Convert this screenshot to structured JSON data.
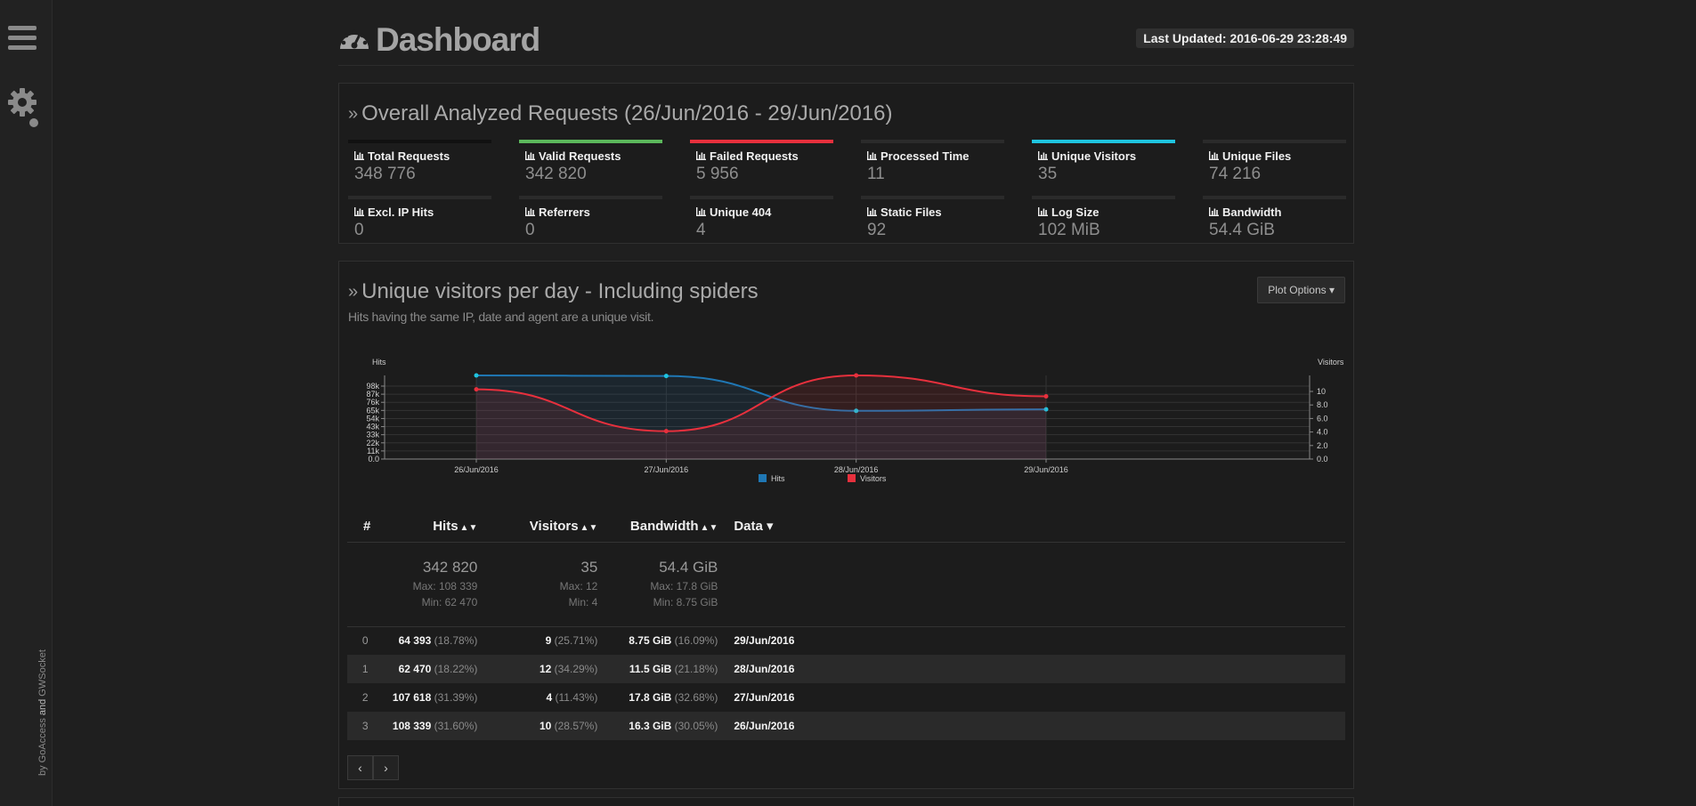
{
  "sidebar": {
    "credit_by": "by",
    "credit_goaccess": "GoAccess",
    "credit_and": "and",
    "credit_gwsocket": "GWSocket"
  },
  "header": {
    "title": "Dashboard",
    "last_updated": "Last Updated: 2016-06-29 23:28:49"
  },
  "overall": {
    "title": "Overall Analyzed Requests (26/Jun/2016 - 29/Jun/2016)",
    "metrics": [
      {
        "label": "Total Requests",
        "value": "348 776",
        "color": "#111111"
      },
      {
        "label": "Valid Requests",
        "value": "342 820",
        "color": "#5cb85c"
      },
      {
        "label": "Failed Requests",
        "value": "5 956",
        "color": "#e7303d"
      },
      {
        "label": "Processed Time",
        "value": "11",
        "color": "#2b2b2b"
      },
      {
        "label": "Unique Visitors",
        "value": "35",
        "color": "#1fc4df"
      },
      {
        "label": "Unique Files",
        "value": "74 216",
        "color": "#2b2b2b"
      },
      {
        "label": "Excl. IP Hits",
        "value": "0",
        "color": "#2b2b2b"
      },
      {
        "label": "Referrers",
        "value": "0",
        "color": "#2b2b2b"
      },
      {
        "label": "Unique 404",
        "value": "4",
        "color": "#2b2b2b"
      },
      {
        "label": "Static Files",
        "value": "92",
        "color": "#2b2b2b"
      },
      {
        "label": "Log Size",
        "value": "102 MiB",
        "color": "#2b2b2b"
      },
      {
        "label": "Bandwidth",
        "value": "54.4 GiB",
        "color": "#2b2b2b"
      }
    ]
  },
  "visitors": {
    "title": "Unique visitors per day - Including spiders",
    "subtitle": "Hits having the same IP, date and agent are a unique visit.",
    "plot_options": "Plot Options",
    "columns": {
      "index": "#",
      "hits": "Hits",
      "visitors": "Visitors",
      "bandwidth": "Bandwidth",
      "data": "Data"
    },
    "summary": {
      "hits": "342 820",
      "hits_max": "Max: 108 339",
      "hits_min": "Min: 62 470",
      "visitors": "35",
      "visitors_max": "Max: 12",
      "visitors_min": "Min: 4",
      "bandwidth": "54.4 GiB",
      "bandwidth_max": "Max: 17.8 GiB",
      "bandwidth_min": "Min: 8.75 GiB"
    },
    "rows": [
      {
        "idx": "0",
        "hits": "64 393",
        "hits_pct": "(18.78%)",
        "visitors": "9",
        "visitors_pct": "(25.71%)",
        "bw": "8.75 GiB",
        "bw_pct": "(16.09%)",
        "date": "29/Jun/2016"
      },
      {
        "idx": "1",
        "hits": "62 470",
        "hits_pct": "(18.22%)",
        "visitors": "12",
        "visitors_pct": "(34.29%)",
        "bw": "11.5 GiB",
        "bw_pct": "(21.18%)",
        "date": "28/Jun/2016"
      },
      {
        "idx": "2",
        "hits": "107 618",
        "hits_pct": "(31.39%)",
        "visitors": "4",
        "visitors_pct": "(11.43%)",
        "bw": "17.8 GiB",
        "bw_pct": "(32.68%)",
        "date": "27/Jun/2016"
      },
      {
        "idx": "3",
        "hits": "108 339",
        "hits_pct": "(31.60%)",
        "visitors": "10",
        "visitors_pct": "(28.57%)",
        "bw": "16.3 GiB",
        "bw_pct": "(30.05%)",
        "date": "26/Jun/2016"
      }
    ]
  },
  "chart_data": {
    "type": "area",
    "x": [
      "26/Jun/2016",
      "27/Jun/2016",
      "28/Jun/2016",
      "29/Jun/2016"
    ],
    "ylabel_left": "Hits",
    "ylabel_right": "Visitors",
    "yticks_left": [
      "0.0",
      "11k",
      "22k",
      "33k",
      "43k",
      "54k",
      "65k",
      "76k",
      "87k",
      "98k"
    ],
    "yticks_right": [
      "0.0",
      "2.0",
      "4.0",
      "6.0",
      "8.0",
      "10"
    ],
    "ylim_left": [
      0,
      108339
    ],
    "ylim_right": [
      0,
      12
    ],
    "series": [
      {
        "name": "Hits",
        "axis": "left",
        "color": "#1f77b4",
        "values": [
          108339,
          107618,
          62470,
          64393
        ]
      },
      {
        "name": "Visitors",
        "axis": "right",
        "color": "#e7303d",
        "values": [
          10,
          4,
          12,
          9
        ]
      }
    ],
    "legend": "bottom"
  }
}
